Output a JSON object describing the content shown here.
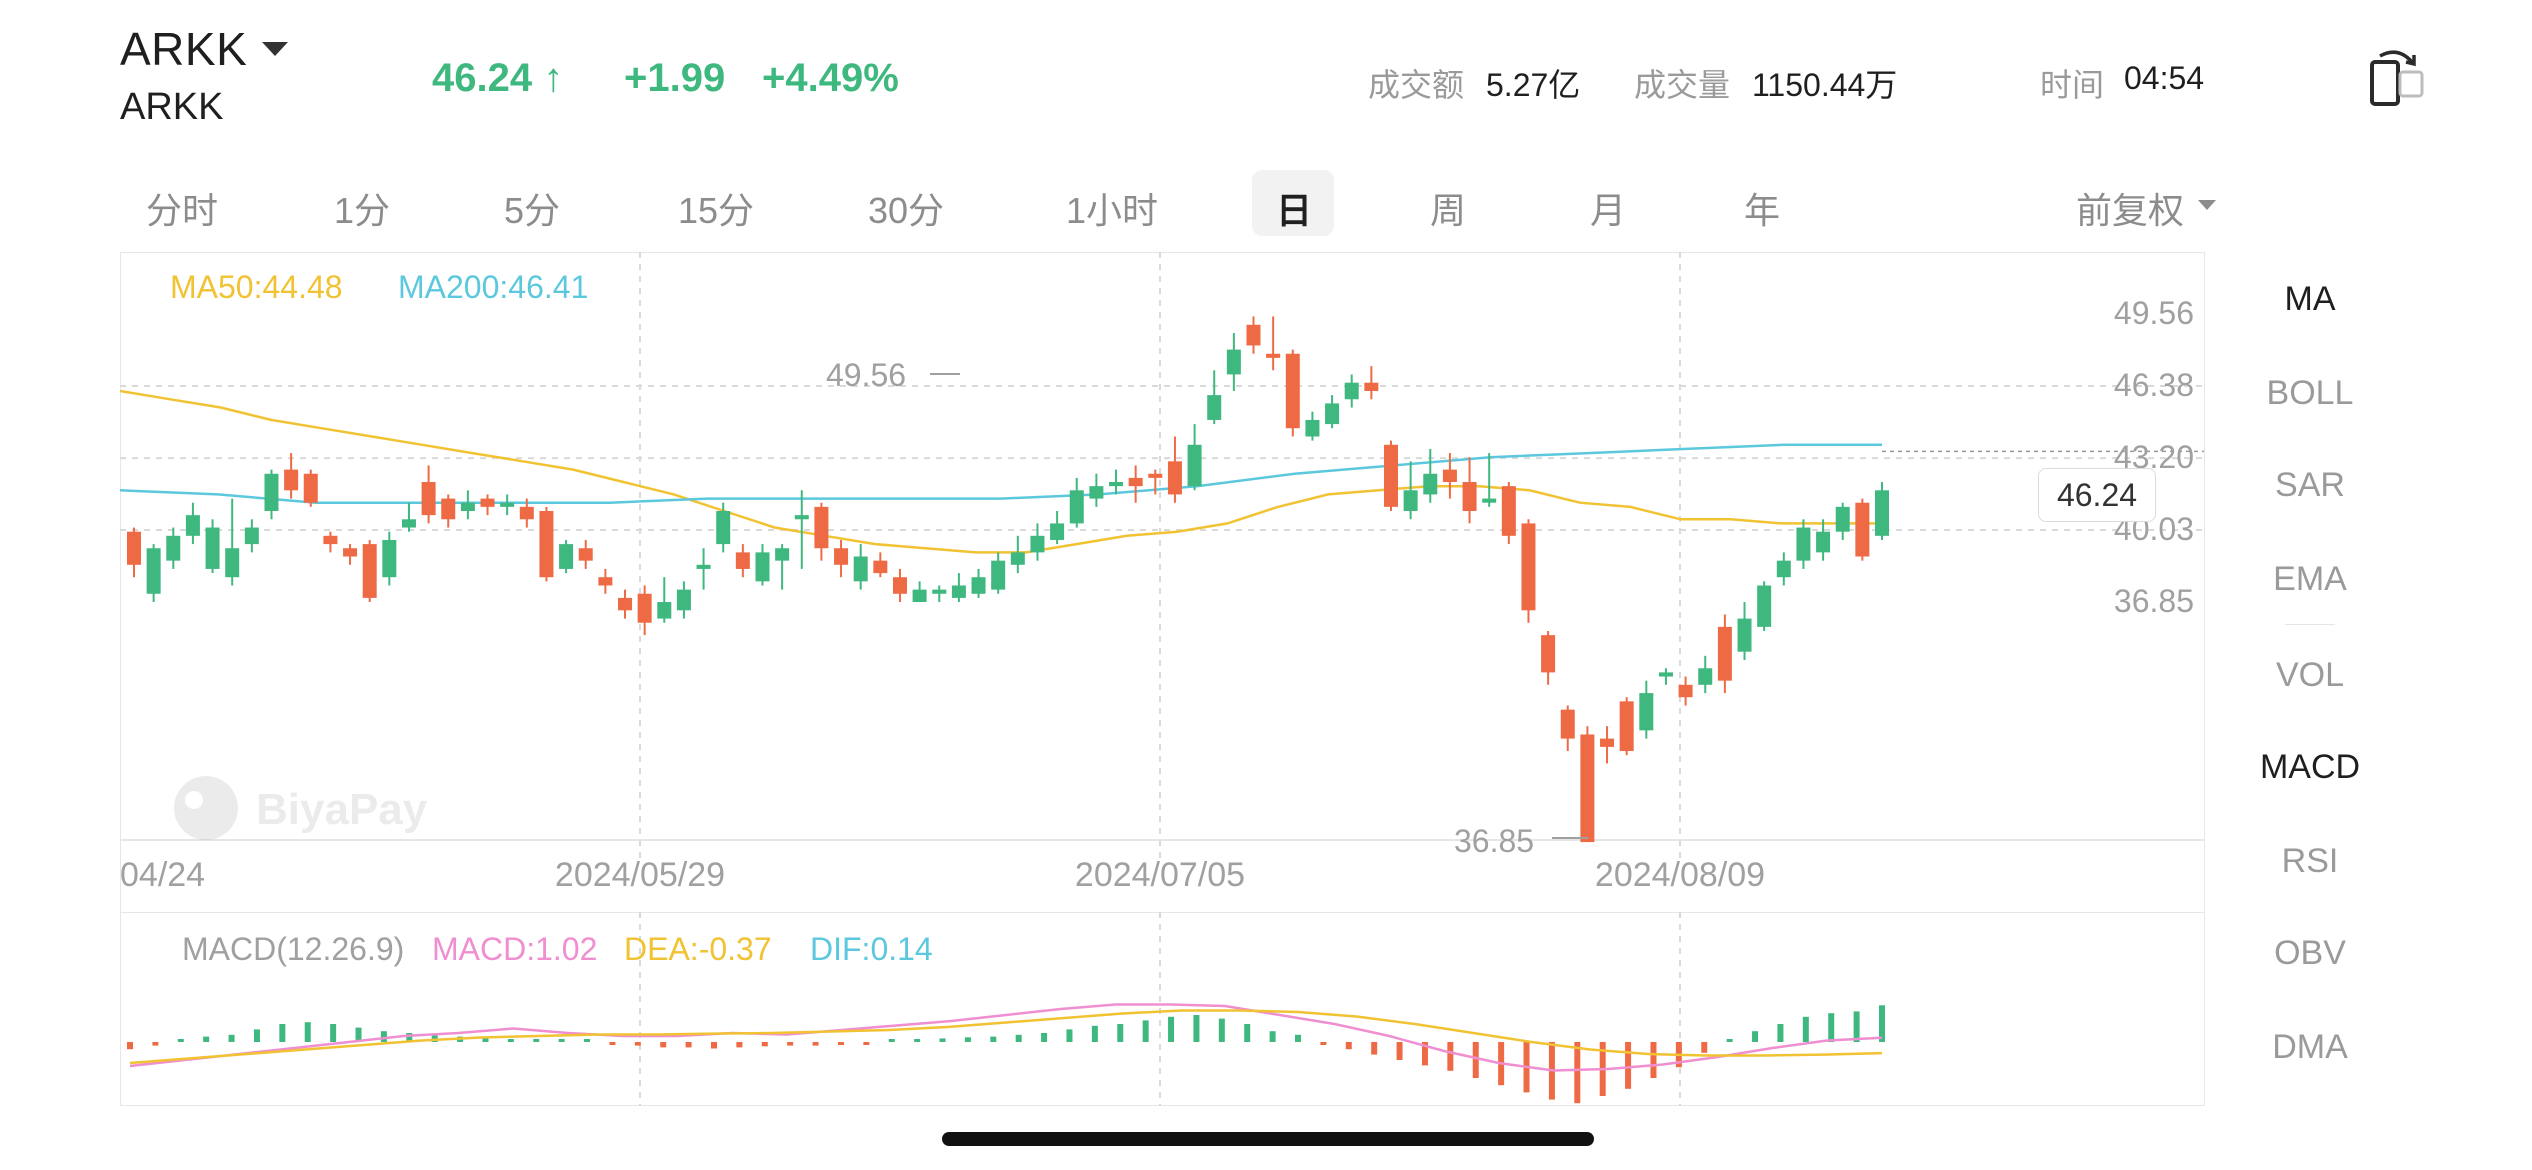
{
  "header": {
    "ticker": "ARKK",
    "ticker_sub": "ARKK",
    "price": "46.24 ↑",
    "change": "+1.99",
    "change_pct": "+4.49%",
    "turnover_label": "成交额",
    "turnover_value": "5.27亿",
    "volume_label": "成交量",
    "volume_value": "1150.44万",
    "time_label": "时间",
    "time_value": "04:54",
    "share_icon": "share-rotate-icon"
  },
  "tabs": [
    "分时",
    "1分",
    "5分",
    "15分",
    "30分",
    "1小时",
    "日",
    "周",
    "月",
    "年"
  ],
  "active_tab": "日",
  "adjust_label": "前复权",
  "indicators": [
    "MA",
    "BOLL",
    "SAR",
    "EMA",
    "VOL",
    "MACD",
    "RSI",
    "OBV",
    "DMA"
  ],
  "active_indicators": [
    "MA",
    "MACD"
  ],
  "ma_legend": {
    "ma50": "MA50:44.48",
    "ma200": "MA200:46.41"
  },
  "macd_legend": {
    "params": "MACD(12.26.9)",
    "macd": "MACD:1.02",
    "dea": "DEA:-0.37",
    "dif": "DIF:0.14"
  },
  "last_price_tag": "46.24",
  "watermark": "BiyaPay",
  "colors": {
    "up": "#3fb87f",
    "down": "#ee6a45",
    "ma50": "#f1c232",
    "ma200": "#5cc8dd",
    "macd_line": "#ef8ed0",
    "dea_line": "#f1c232",
    "dif_legend": "#5cc8dd",
    "grid": "#d9d9d9",
    "axis_text": "#a0a0a0"
  },
  "chart_data": {
    "type": "candlestick",
    "y_ticks": [
      "49.56",
      "46.38",
      "43.20",
      "40.03",
      "36.85"
    ],
    "ylim": [
      36.85,
      49.56
    ],
    "x_labels": [
      "04/24",
      "2024/05/29",
      "2024/07/05",
      "2024/08/09"
    ],
    "high_marker": "49.56",
    "low_marker": "36.85",
    "candles": [
      [
        44.3,
        43.5,
        44.4,
        43.2
      ],
      [
        42.8,
        43.9,
        44.0,
        42.6
      ],
      [
        43.6,
        44.2,
        44.4,
        43.4
      ],
      [
        44.2,
        44.7,
        45.0,
        44.0
      ],
      [
        43.4,
        44.4,
        44.6,
        43.3
      ],
      [
        43.2,
        43.9,
        45.1,
        43.0
      ],
      [
        44.0,
        44.4,
        44.6,
        43.8
      ],
      [
        44.8,
        45.7,
        45.8,
        44.6
      ],
      [
        45.8,
        45.3,
        46.2,
        45.1
      ],
      [
        45.7,
        45.0,
        45.8,
        44.9
      ],
      [
        44.2,
        44.0,
        44.3,
        43.8
      ],
      [
        43.9,
        43.7,
        44.0,
        43.5
      ],
      [
        44.0,
        42.7,
        44.1,
        42.6
      ],
      [
        43.2,
        44.1,
        44.3,
        43.0
      ],
      [
        44.4,
        44.6,
        45.0,
        44.3
      ],
      [
        45.5,
        44.7,
        45.9,
        44.5
      ],
      [
        45.1,
        44.6,
        45.2,
        44.4
      ],
      [
        44.8,
        45.0,
        45.3,
        44.6
      ],
      [
        45.1,
        44.9,
        45.2,
        44.7
      ],
      [
        44.9,
        45.0,
        45.2,
        44.7
      ],
      [
        44.9,
        44.6,
        45.1,
        44.4
      ],
      [
        44.8,
        43.2,
        44.9,
        43.1
      ],
      [
        43.4,
        44.0,
        44.1,
        43.3
      ],
      [
        43.9,
        43.6,
        44.1,
        43.4
      ],
      [
        43.2,
        43.0,
        43.4,
        42.8
      ],
      [
        42.7,
        42.4,
        42.9,
        42.2
      ],
      [
        42.8,
        42.1,
        43.0,
        41.8
      ],
      [
        42.2,
        42.6,
        43.2,
        42.1
      ],
      [
        42.4,
        42.9,
        43.1,
        42.2
      ],
      [
        43.4,
        43.5,
        43.9,
        42.9
      ],
      [
        44.0,
        44.8,
        45.0,
        43.8
      ],
      [
        43.8,
        43.4,
        44.0,
        43.2
      ],
      [
        43.1,
        43.8,
        44.0,
        43.0
      ],
      [
        43.6,
        43.9,
        44.0,
        42.9
      ],
      [
        44.6,
        44.7,
        45.3,
        43.4
      ],
      [
        44.9,
        43.9,
        45.0,
        43.6
      ],
      [
        43.9,
        43.5,
        44.1,
        43.2
      ],
      [
        43.1,
        43.7,
        44.0,
        42.9
      ],
      [
        43.6,
        43.3,
        43.8,
        43.2
      ],
      [
        43.2,
        42.8,
        43.4,
        42.6
      ],
      [
        42.6,
        42.9,
        43.1,
        42.6
      ],
      [
        42.8,
        42.9,
        43.0,
        42.6
      ],
      [
        42.7,
        43.0,
        43.3,
        42.6
      ],
      [
        42.8,
        43.2,
        43.4,
        42.7
      ],
      [
        42.9,
        43.6,
        43.8,
        42.8
      ],
      [
        43.5,
        43.8,
        44.2,
        43.3
      ],
      [
        43.8,
        44.2,
        44.5,
        43.6
      ],
      [
        44.1,
        44.5,
        44.8,
        44.0
      ],
      [
        44.5,
        45.3,
        45.6,
        44.4
      ],
      [
        45.1,
        45.4,
        45.7,
        44.9
      ],
      [
        45.4,
        45.5,
        45.8,
        45.2
      ],
      [
        45.6,
        45.4,
        45.9,
        45.0
      ],
      [
        45.7,
        45.6,
        45.8,
        45.2
      ],
      [
        46.0,
        45.2,
        46.6,
        45.0
      ],
      [
        45.4,
        46.4,
        46.9,
        45.3
      ],
      [
        47.0,
        47.6,
        48.2,
        46.9
      ],
      [
        48.1,
        48.7,
        49.1,
        47.7
      ],
      [
        49.3,
        48.8,
        49.5,
        48.6
      ],
      [
        48.6,
        48.5,
        49.5,
        48.2
      ],
      [
        48.6,
        46.8,
        48.7,
        46.6
      ],
      [
        46.6,
        47.0,
        47.2,
        46.5
      ],
      [
        46.9,
        47.4,
        47.6,
        46.8
      ],
      [
        47.5,
        47.9,
        48.1,
        47.3
      ],
      [
        47.9,
        47.7,
        48.3,
        47.5
      ],
      [
        46.4,
        44.9,
        46.5,
        44.8
      ],
      [
        44.8,
        45.3,
        46.0,
        44.6
      ],
      [
        45.2,
        45.7,
        46.3,
        45.0
      ],
      [
        45.8,
        45.5,
        46.2,
        45.1
      ],
      [
        45.5,
        44.8,
        46.1,
        44.5
      ],
      [
        45.0,
        45.1,
        46.2,
        44.9
      ],
      [
        45.4,
        44.2,
        45.5,
        44.0
      ],
      [
        44.5,
        42.4,
        44.6,
        42.1
      ],
      [
        41.8,
        40.9,
        41.9,
        40.6
      ],
      [
        40.0,
        39.3,
        40.1,
        39.0
      ],
      [
        39.4,
        36.8,
        39.6,
        36.8
      ],
      [
        39.3,
        39.1,
        39.6,
        38.7
      ],
      [
        40.2,
        39.0,
        40.3,
        38.9
      ],
      [
        39.5,
        40.4,
        40.7,
        39.3
      ],
      [
        40.8,
        40.9,
        41.0,
        40.6
      ],
      [
        40.6,
        40.3,
        40.8,
        40.1
      ],
      [
        40.6,
        41.0,
        41.3,
        40.4
      ],
      [
        42.0,
        40.7,
        42.3,
        40.4
      ],
      [
        41.4,
        42.2,
        42.6,
        41.2
      ],
      [
        42.0,
        43.0,
        43.1,
        41.9
      ],
      [
        43.2,
        43.6,
        43.8,
        43.0
      ],
      [
        43.6,
        44.4,
        44.6,
        43.4
      ],
      [
        43.8,
        44.3,
        44.6,
        43.6
      ],
      [
        44.3,
        44.9,
        45.0,
        44.1
      ],
      [
        45.0,
        43.7,
        45.1,
        43.6
      ],
      [
        44.2,
        45.3,
        45.5,
        44.1
      ]
    ],
    "ma50": [
      47.7,
      47.5,
      47.3,
      47.0,
      46.8,
      46.6,
      46.4,
      46.2,
      46.0,
      45.8,
      45.5,
      45.2,
      44.8,
      44.4,
      44.2,
      44.0,
      43.9,
      43.8,
      43.8,
      44.0,
      44.2,
      44.3,
      44.5,
      44.9,
      45.2,
      45.3,
      45.4,
      45.4,
      45.3,
      45.0,
      44.9,
      44.6,
      44.6,
      44.5,
      44.5,
      44.5
    ],
    "ma200": [
      45.3,
      45.2,
      45.0,
      45.0,
      45.0,
      45.0,
      45.1,
      45.1,
      45.1,
      45.1,
      45.2,
      45.4,
      45.7,
      45.9,
      46.1,
      46.2,
      46.3,
      46.4,
      46.4
    ],
    "macd": {
      "hist": [
        -0.2,
        -0.1,
        0.04,
        0.15,
        0.2,
        0.35,
        0.5,
        0.55,
        0.5,
        0.4,
        0.3,
        0.25,
        0.2,
        0.15,
        0.1,
        0.07,
        0.05,
        0.03,
        0.0,
        -0.05,
        -0.1,
        -0.15,
        -0.15,
        -0.18,
        -0.15,
        -0.12,
        -0.1,
        -0.1,
        -0.05,
        -0.02,
        0.0,
        0.05,
        0.1,
        0.13,
        0.15,
        0.2,
        0.25,
        0.35,
        0.45,
        0.5,
        0.6,
        0.7,
        0.75,
        0.65,
        0.5,
        0.3,
        0.2,
        -0.05,
        -0.2,
        -0.35,
        -0.5,
        -0.65,
        -0.8,
        -1.0,
        -1.2,
        -1.4,
        -1.6,
        -1.7,
        -1.5,
        -1.3,
        -1.0,
        -0.7,
        -0.3,
        0.05,
        0.3,
        0.5,
        0.7,
        0.8,
        0.85,
        1.02
      ],
      "macd_line": [
        -0.8,
        -0.6,
        -0.4,
        -0.2,
        0.0,
        0.2,
        0.3,
        0.45,
        0.3,
        0.2,
        0.2,
        0.3,
        0.25,
        0.4,
        0.55,
        0.7,
        0.9,
        1.1,
        1.25,
        1.25,
        1.2,
        0.9,
        0.6,
        0.2,
        -0.3,
        -0.7,
        -0.95,
        -0.9,
        -0.75,
        -0.5,
        -0.2,
        0.05,
        0.14
      ],
      "dea_line": [
        -0.7,
        -0.55,
        -0.4,
        -0.25,
        -0.1,
        0.05,
        0.15,
        0.2,
        0.25,
        0.25,
        0.28,
        0.3,
        0.35,
        0.4,
        0.5,
        0.65,
        0.8,
        0.95,
        1.05,
        1.05,
        1.0,
        0.85,
        0.6,
        0.3,
        0.0,
        -0.25,
        -0.4,
        -0.45,
        -0.45,
        -0.42,
        -0.37
      ]
    }
  }
}
